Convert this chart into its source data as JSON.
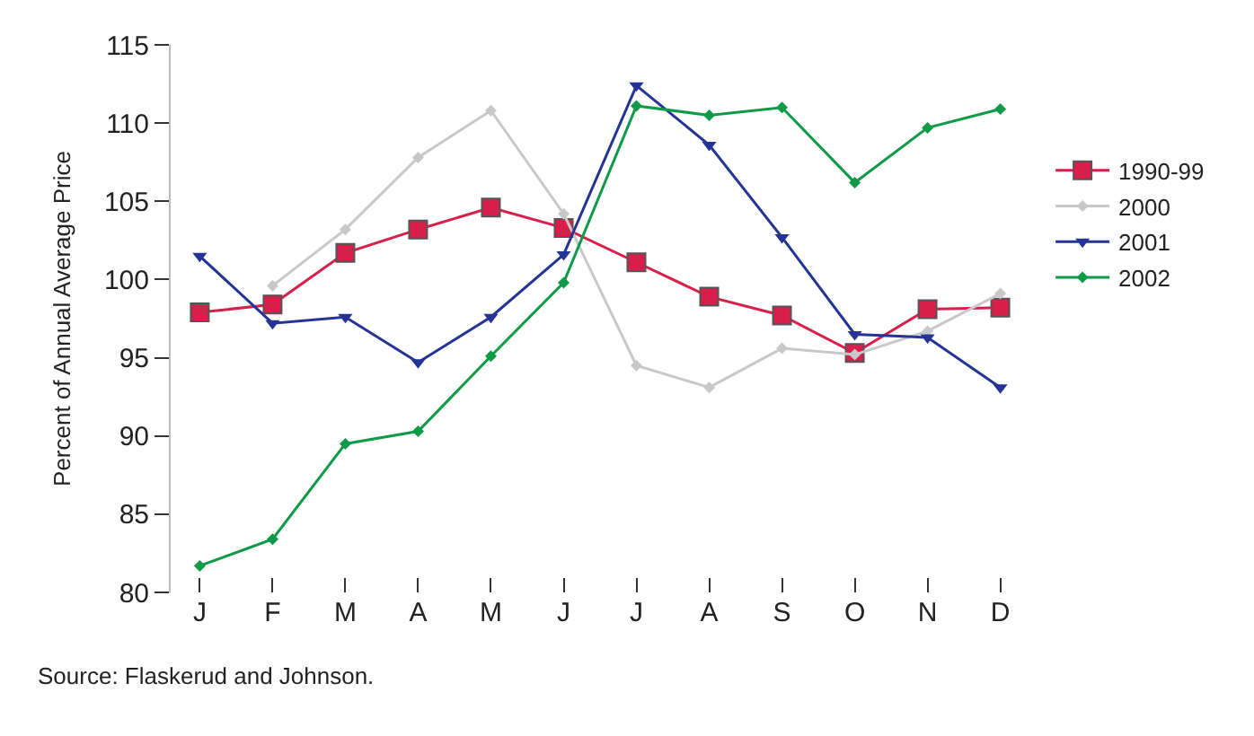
{
  "chart_data": {
    "type": "line",
    "ylabel": "Percent of Annual Average Price",
    "categories": [
      "J",
      "F",
      "M",
      "A",
      "M",
      "J",
      "J",
      "A",
      "S",
      "O",
      "N",
      "D"
    ],
    "series": [
      {
        "name": "1990-99",
        "color": "#d81e4a",
        "marker": "square",
        "values": [
          97.9,
          98.4,
          101.7,
          103.2,
          104.6,
          103.3,
          101.1,
          98.9,
          97.7,
          95.3,
          98.1,
          98.2
        ]
      },
      {
        "name": "2000",
        "color": "#c8c8c8",
        "marker": "diamond",
        "values": [
          null,
          99.6,
          103.2,
          107.8,
          110.8,
          104.2,
          94.5,
          93.1,
          95.6,
          95.2,
          96.7,
          99.1
        ]
      },
      {
        "name": "2001",
        "color": "#253494",
        "marker": "triangle",
        "values": [
          101.5,
          97.2,
          97.6,
          94.7,
          97.6,
          101.6,
          112.4,
          108.6,
          102.7,
          96.5,
          96.3,
          93.1
        ]
      },
      {
        "name": "2002",
        "color": "#0f9a48",
        "marker": "diamond",
        "values": [
          81.7,
          83.4,
          89.5,
          90.3,
          95.1,
          99.8,
          111.1,
          110.5,
          111.0,
          106.2,
          109.7,
          110.9
        ]
      }
    ],
    "ylim": [
      80,
      115
    ],
    "yticks": [
      80,
      85,
      90,
      95,
      100,
      105,
      110,
      115
    ],
    "legend": "right",
    "annotations": [
      "Source: Flaskerud and Johnson."
    ]
  }
}
